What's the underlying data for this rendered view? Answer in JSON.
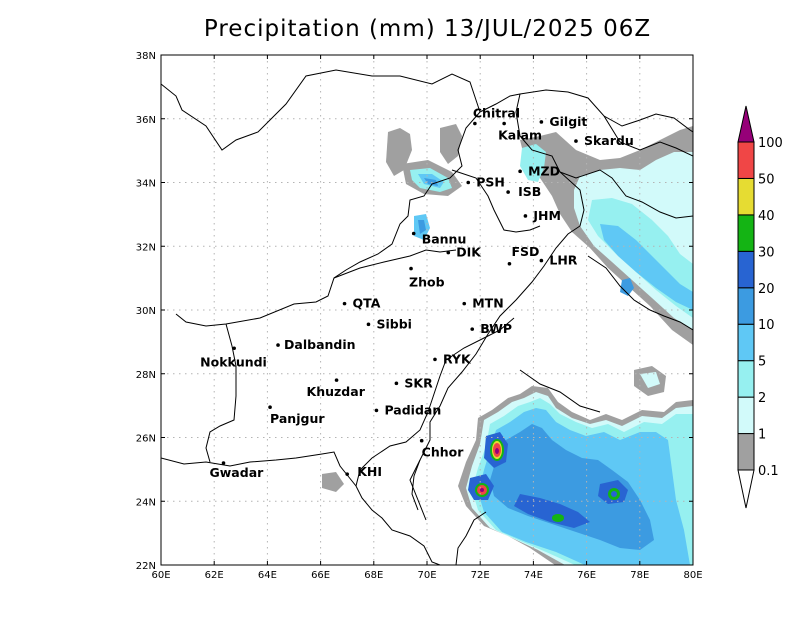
{
  "title": "Precipitation (mm) 13/JUL/2025 06Z",
  "map": {
    "lon_range": [
      60,
      80
    ],
    "lat_range": [
      22,
      38
    ],
    "x_ticks": [
      "60E",
      "62E",
      "64E",
      "66E",
      "68E",
      "70E",
      "72E",
      "74E",
      "76E",
      "78E",
      "80E"
    ],
    "y_ticks": [
      "22N",
      "24N",
      "26N",
      "28N",
      "30N",
      "32N",
      "34N",
      "36N",
      "38N"
    ],
    "gridlines": true
  },
  "cities": [
    {
      "name": "Chitral",
      "lon": 71.8,
      "lat": 35.85,
      "label_dx": -2,
      "label_dy": -6
    },
    {
      "name": "Gilgit",
      "lon": 74.3,
      "lat": 35.9,
      "label_dx": 8,
      "label_dy": 4
    },
    {
      "name": "Kalam",
      "lon": 72.9,
      "lat": 35.85,
      "label_dx": -6,
      "label_dy": 16
    },
    {
      "name": "Skardu",
      "lon": 75.6,
      "lat": 35.3,
      "label_dx": 8,
      "label_dy": 4
    },
    {
      "name": "MZD",
      "lon": 73.5,
      "lat": 34.35,
      "label_dx": 8,
      "label_dy": 4
    },
    {
      "name": "PSH",
      "lon": 71.55,
      "lat": 34.0,
      "label_dx": 8,
      "label_dy": 4
    },
    {
      "name": "ISB",
      "lon": 73.05,
      "lat": 33.7,
      "label_dx": 10,
      "label_dy": 4
    },
    {
      "name": "JHM",
      "lon": 73.7,
      "lat": 32.95,
      "label_dx": 8,
      "label_dy": 4
    },
    {
      "name": "Bannu",
      "lon": 69.5,
      "lat": 32.4,
      "label_dx": 8,
      "label_dy": 10
    },
    {
      "name": "DIK",
      "lon": 70.8,
      "lat": 31.8,
      "label_dx": 8,
      "label_dy": 4
    },
    {
      "name": "FSD",
      "lon": 73.1,
      "lat": 31.45,
      "label_dx": 2,
      "label_dy": -8
    },
    {
      "name": "LHR",
      "lon": 74.3,
      "lat": 31.55,
      "label_dx": 8,
      "label_dy": 4
    },
    {
      "name": "Zhob",
      "lon": 69.4,
      "lat": 31.3,
      "label_dx": -2,
      "label_dy": 18
    },
    {
      "name": "QTA",
      "lon": 66.9,
      "lat": 30.2,
      "label_dx": 8,
      "label_dy": 4
    },
    {
      "name": "MTN",
      "lon": 71.4,
      "lat": 30.2,
      "label_dx": 8,
      "label_dy": 4
    },
    {
      "name": "Sibbi",
      "lon": 67.8,
      "lat": 29.55,
      "label_dx": 8,
      "label_dy": 4
    },
    {
      "name": "BWP",
      "lon": 71.7,
      "lat": 29.4,
      "label_dx": 8,
      "label_dy": 4
    },
    {
      "name": "Dalbandin",
      "lon": 64.4,
      "lat": 28.9,
      "label_dx": 6,
      "label_dy": 4
    },
    {
      "name": "Nokkundi",
      "lon": 62.75,
      "lat": 28.8,
      "label_dx": -34,
      "label_dy": 18
    },
    {
      "name": "RYK",
      "lon": 70.3,
      "lat": 28.45,
      "label_dx": 8,
      "label_dy": 4
    },
    {
      "name": "Khuzdar",
      "lon": 66.6,
      "lat": 27.8,
      "label_dx": -30,
      "label_dy": 16
    },
    {
      "name": "SKR",
      "lon": 68.85,
      "lat": 27.7,
      "label_dx": 8,
      "label_dy": 4
    },
    {
      "name": "Panjgur",
      "lon": 64.1,
      "lat": 26.95,
      "label_dx": 0,
      "label_dy": 16
    },
    {
      "name": "Padidan",
      "lon": 68.1,
      "lat": 26.85,
      "label_dx": 8,
      "label_dy": 4
    },
    {
      "name": "Chhor",
      "lon": 69.8,
      "lat": 25.9,
      "label_dx": 0,
      "label_dy": 16
    },
    {
      "name": "KHI",
      "lon": 67.0,
      "lat": 24.85,
      "label_dx": 10,
      "label_dy": 2
    },
    {
      "name": "Gwadar",
      "lon": 62.35,
      "lat": 25.2,
      "label_dx": -14,
      "label_dy": 14
    }
  ],
  "colorbar": {
    "levels": [
      "0.1",
      "1",
      "2",
      "5",
      "10",
      "20",
      "30",
      "40",
      "50",
      "100"
    ],
    "colors": [
      "#a0a0a0",
      "#d2fafa",
      "#96f0f0",
      "#5fc8f5",
      "#3c9be1",
      "#2864d2",
      "#14b414",
      "#e6dc32",
      "#f04646",
      "#960078"
    ]
  }
}
